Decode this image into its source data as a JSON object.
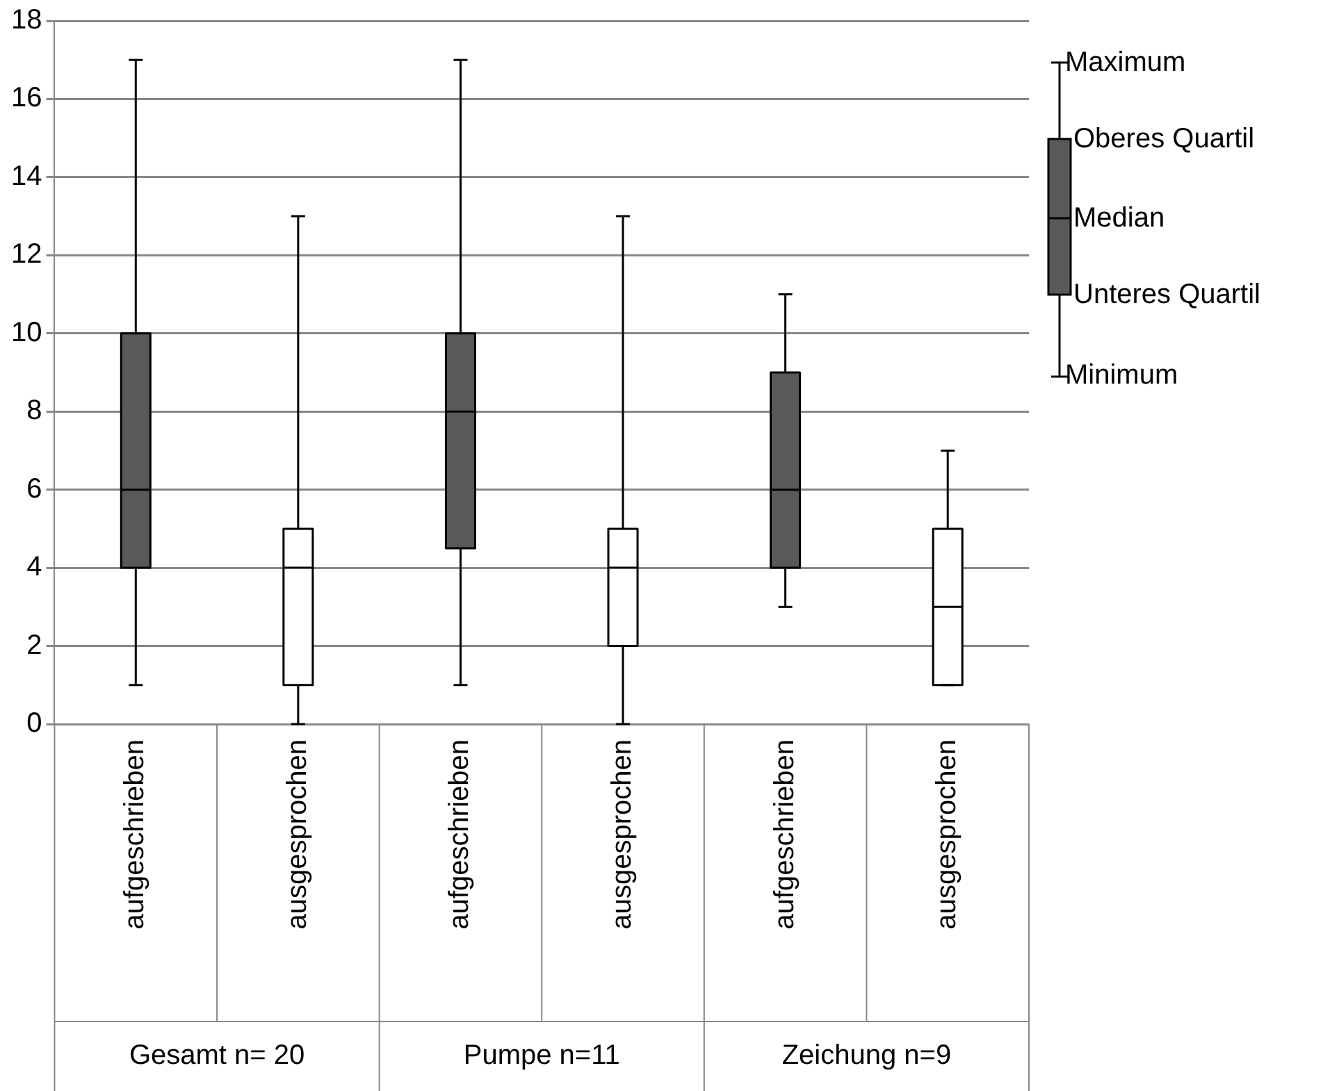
{
  "chart_data": {
    "type": "box",
    "categories": [
      "aufgeschrieben",
      "ausgesprochen",
      "aufgeschrieben",
      "ausgesprochen",
      "aufgeschrieben",
      "ausgesprochen"
    ],
    "boxes": [
      {
        "low": 1,
        "q1": 4,
        "median": 6,
        "q3": 10,
        "high": 17
      },
      {
        "low": 0,
        "q1": 1,
        "median": 4,
        "q3": 5,
        "high": 13
      },
      {
        "low": 1,
        "q1": 4.5,
        "median": 8,
        "q3": 10,
        "high": 17
      },
      {
        "low": 0,
        "q1": 2,
        "median": 4,
        "q3": 5,
        "high": 13
      },
      {
        "low": 3,
        "q1": 4,
        "median": 6,
        "q3": 9,
        "high": 11
      },
      {
        "low": 1,
        "q1": 1,
        "median": 3,
        "q3": 5,
        "high": 7
      }
    ],
    "colors": [
      "#595959",
      "#ffffff",
      "#595959",
      "#ffffff",
      "#595959",
      "#ffffff"
    ],
    "ylim": [
      0,
      18
    ],
    "yticks": [
      0,
      2,
      4,
      6,
      8,
      10,
      12,
      14,
      16,
      18
    ],
    "grid": "y",
    "legend": false,
    "annotations": [
      "Gesamt n= 20",
      "Pumpe n=11",
      "Zeichung n=9",
      "Maximum",
      "Oberes Quartil",
      "Median",
      "Unteres Quartil",
      "Minimum"
    ]
  }
}
